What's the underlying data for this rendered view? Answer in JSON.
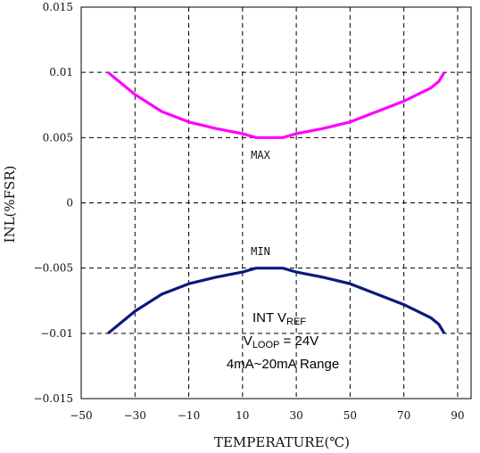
{
  "chart_data": {
    "type": "line",
    "xlabel": "TEMPERATURE(℃)",
    "ylabel": "INL(%FSR)",
    "xlim": [
      -50,
      95
    ],
    "ylim": [
      -0.015,
      0.015
    ],
    "x_ticks": [
      -50,
      -30,
      -10,
      10,
      30,
      50,
      70,
      90
    ],
    "x_tick_labels": [
      "−50",
      "−30",
      "−10",
      "10",
      "30",
      "50",
      "70",
      "90"
    ],
    "y_ticks": [
      -0.015,
      -0.01,
      -0.005,
      0,
      0.005,
      0.01,
      0.015
    ],
    "y_tick_labels": [
      "−0.015",
      "−0.01",
      "−0.005",
      "0",
      "0.005",
      "0.01",
      "0.015"
    ],
    "grid": "dashed",
    "series": [
      {
        "name": "MAX",
        "color": "#ff00ff",
        "x": [
          -40,
          -30,
          -20,
          -10,
          0,
          10,
          15,
          20,
          25,
          30,
          40,
          50,
          60,
          70,
          80,
          83,
          85
        ],
        "values": [
          0.01,
          0.0083,
          0.007,
          0.0062,
          0.0057,
          0.0053,
          0.005,
          0.005,
          0.005,
          0.0053,
          0.0057,
          0.0062,
          0.007,
          0.0078,
          0.0088,
          0.0093,
          0.01
        ]
      },
      {
        "name": "MIN",
        "color": "#0a1a7a",
        "x": [
          -40,
          -30,
          -20,
          -10,
          0,
          10,
          15,
          20,
          25,
          30,
          40,
          50,
          60,
          70,
          80,
          83,
          85
        ],
        "values": [
          -0.01,
          -0.0083,
          -0.007,
          -0.0062,
          -0.0057,
          -0.0053,
          -0.005,
          -0.005,
          -0.005,
          -0.0053,
          -0.0057,
          -0.0062,
          -0.007,
          -0.0078,
          -0.0088,
          -0.0093,
          -0.01
        ]
      }
    ],
    "annotations": {
      "line1_main": "INT V",
      "line1_sub": "REF",
      "line2_main": "V",
      "line2_sub": "LOOP",
      "line2_rest": " = 24V",
      "line3": "4mA~20mA Range"
    }
  }
}
